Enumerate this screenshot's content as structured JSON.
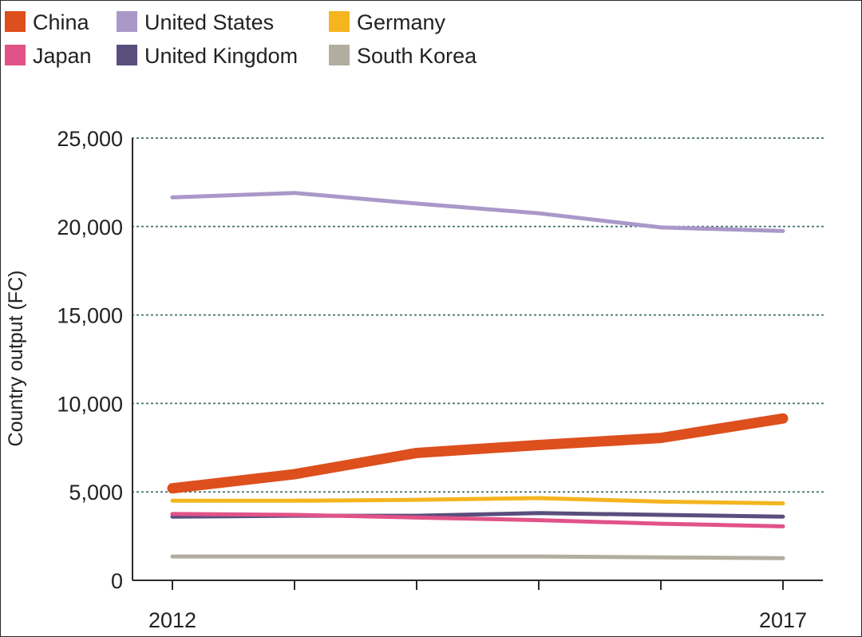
{
  "chart_data": {
    "type": "line",
    "title": "",
    "xlabel": "",
    "ylabel": "Country output (FC)",
    "x": [
      2012,
      2013,
      2014,
      2015,
      2016,
      2017
    ],
    "x_tick_labels": [
      "2012",
      "",
      "",
      "",
      "",
      "2017"
    ],
    "ylim": [
      0,
      25000
    ],
    "y_ticks": [
      0,
      5000,
      10000,
      15000,
      20000,
      25000
    ],
    "y_tick_labels": [
      "0",
      "5,000",
      "10,000",
      "15,000",
      "20,000",
      "25,000"
    ],
    "grid": true,
    "legend_position": "top-left",
    "series": [
      {
        "name": "China",
        "color": "#dd4f1d",
        "values": [
          5200,
          6000,
          7200,
          7650,
          8050,
          9150
        ],
        "emphasis": true
      },
      {
        "name": "United States",
        "color": "#aa98c9",
        "values": [
          21650,
          21900,
          21300,
          20750,
          19950,
          19750
        ]
      },
      {
        "name": "Germany",
        "color": "#f4b51f",
        "values": [
          4500,
          4500,
          4550,
          4650,
          4450,
          4350
        ]
      },
      {
        "name": "Japan",
        "color": "#e15388",
        "values": [
          3750,
          3700,
          3550,
          3400,
          3200,
          3050
        ]
      },
      {
        "name": "United Kingdom",
        "color": "#5a4e7d",
        "values": [
          3600,
          3650,
          3650,
          3800,
          3700,
          3600
        ]
      },
      {
        "name": "South Korea",
        "color": "#b1ae9f",
        "values": [
          1350,
          1350,
          1350,
          1350,
          1300,
          1250
        ]
      }
    ]
  }
}
